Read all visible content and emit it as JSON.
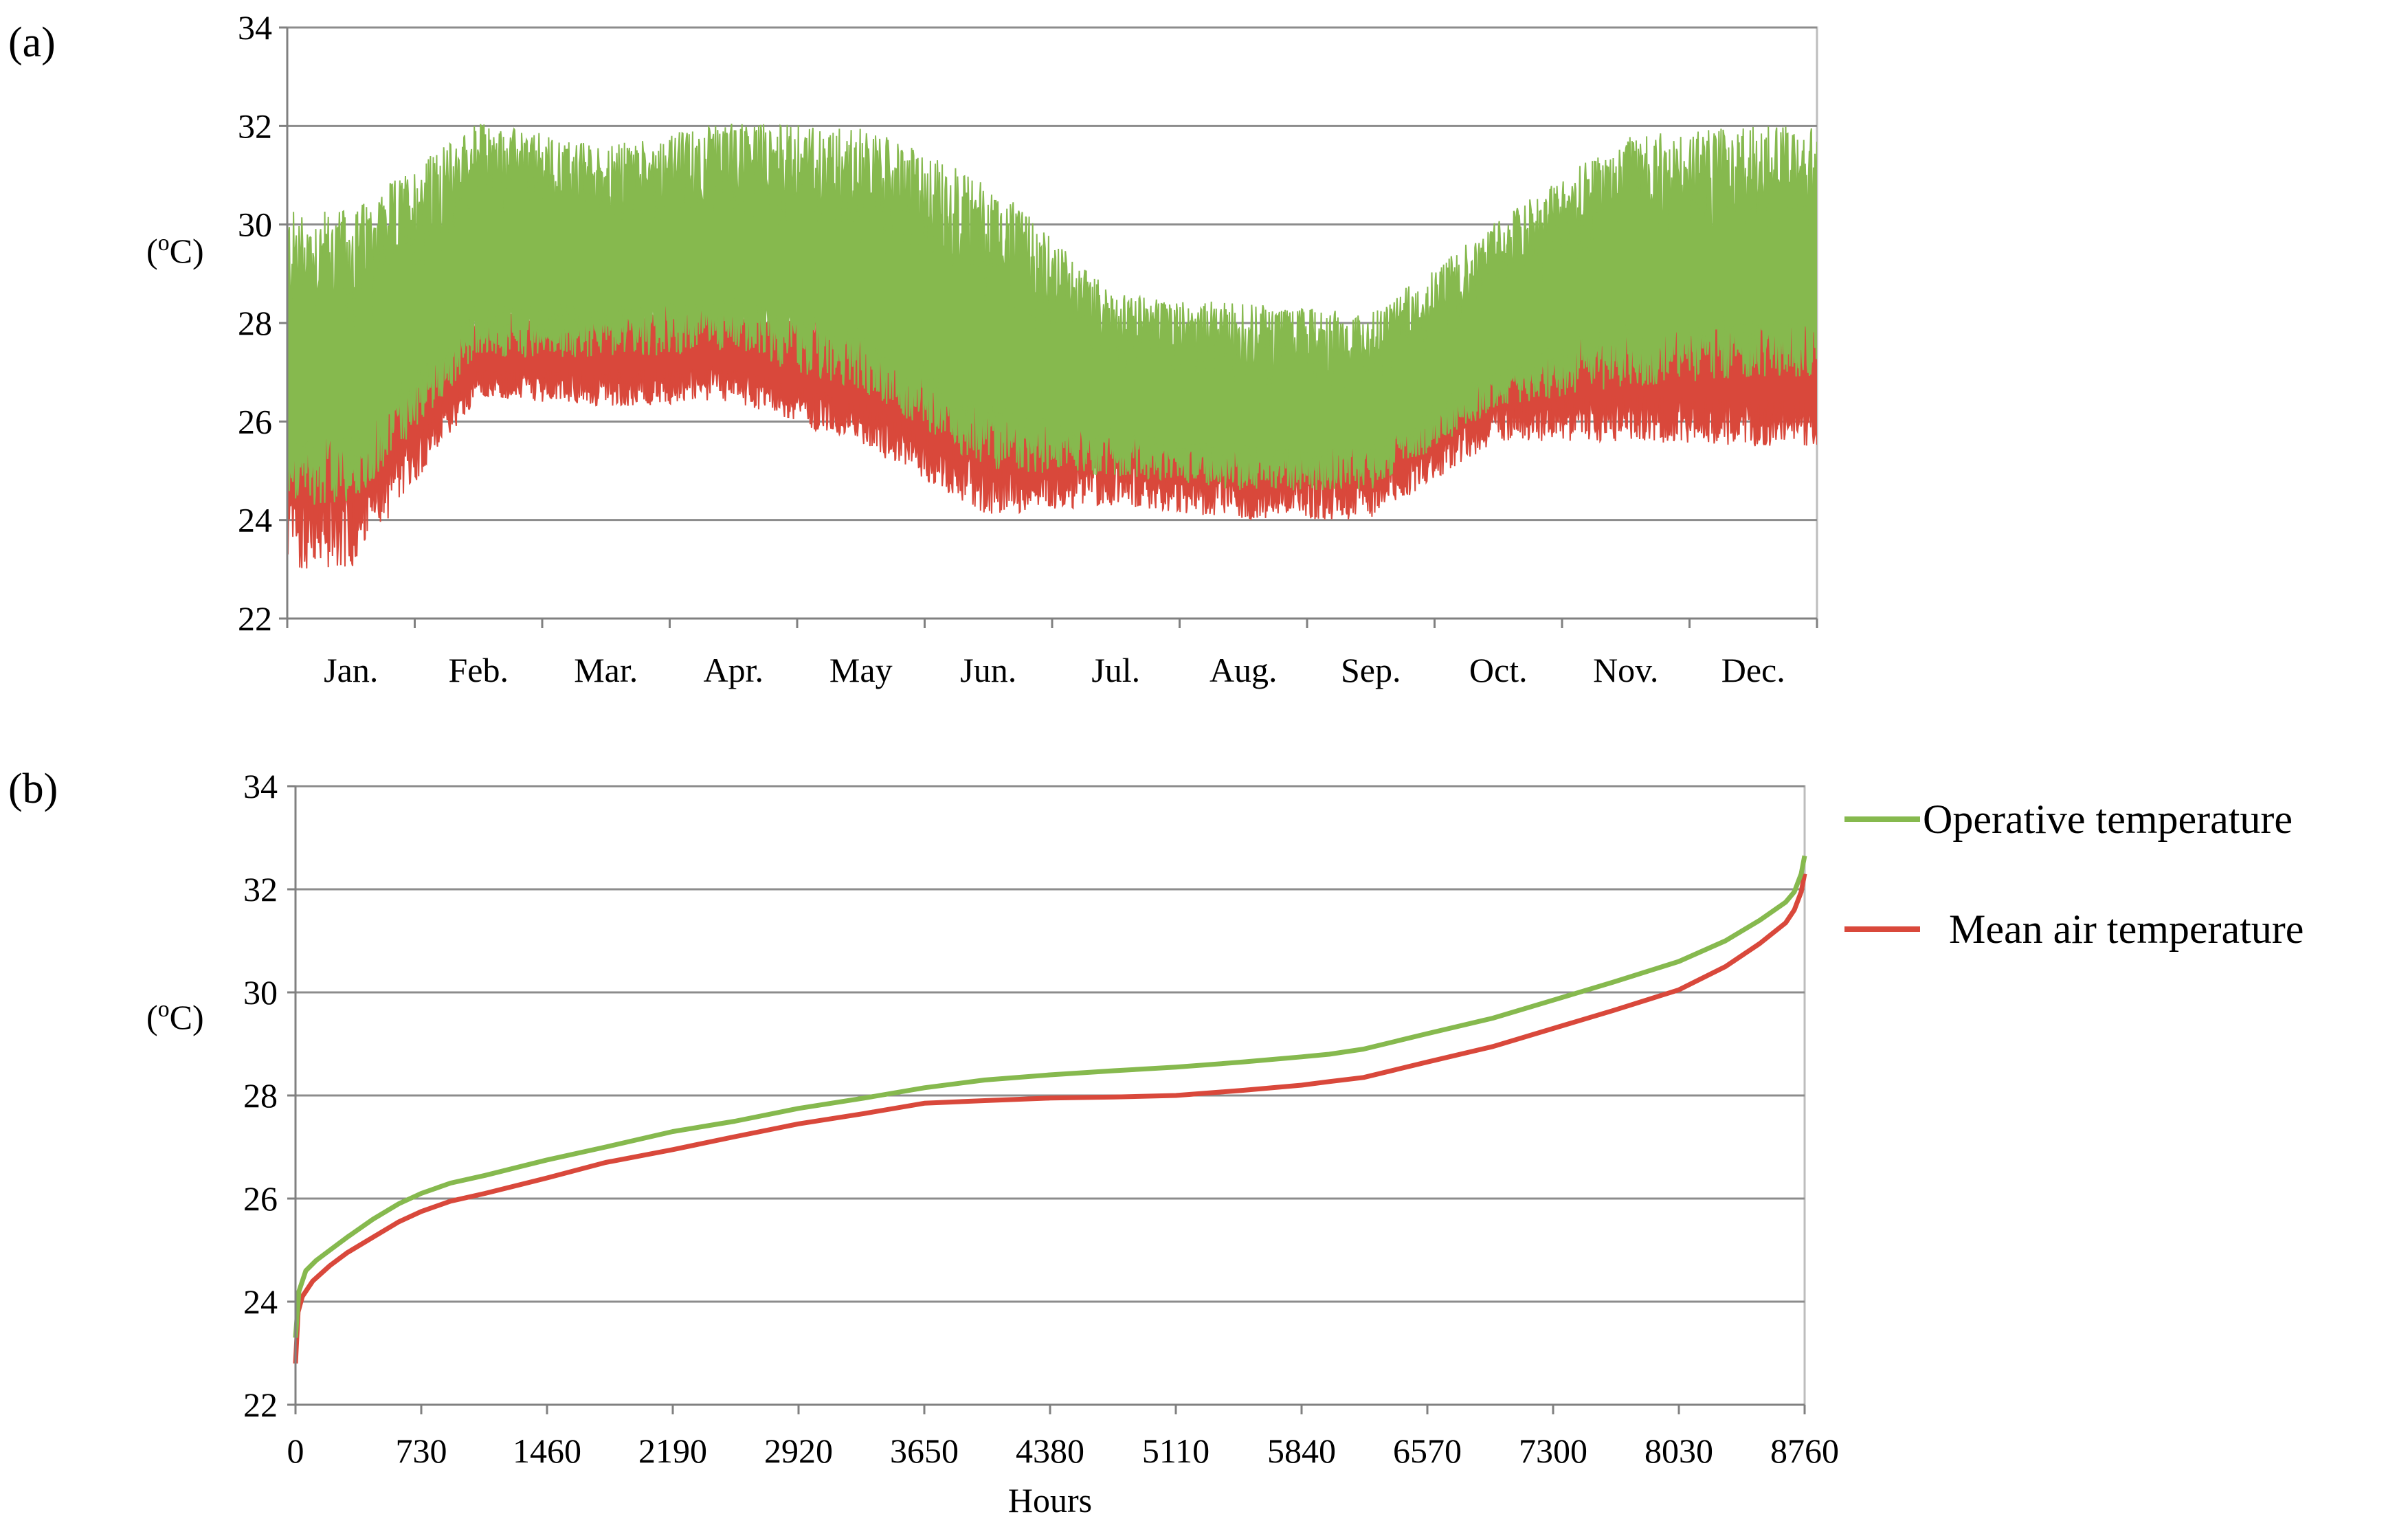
{
  "chart_data": [
    {
      "panel": "(a)",
      "type": "area",
      "xlabel": "",
      "ylabel": "(oC)",
      "ylim": [
        22,
        34
      ],
      "yticks": [
        22,
        24,
        26,
        28,
        30,
        32,
        34
      ],
      "grid": true,
      "categories": [
        "Jan.",
        "Feb.",
        "Mar.",
        "Apr.",
        "May",
        "Jun.",
        "Jul.",
        "Aug.",
        "Sep.",
        "Oct.",
        "Nov.",
        "Dec."
      ],
      "series": [
        {
          "name": "Operative temperature",
          "color": "#86b94e",
          "upper_envelope_monthly": [
            30.3,
            32.1,
            31.6,
            32.1,
            32.0,
            30.9,
            28.6,
            28.4,
            28.2,
            30.1,
            31.8,
            32.0
          ],
          "lower_envelope_monthly": [
            24.3,
            27.3,
            27.3,
            27.4,
            26.6,
            25.0,
            24.9,
            24.6,
            24.6,
            26.3,
            26.7,
            26.9
          ]
        },
        {
          "name": "Mean air temperature",
          "color": "#d9483b",
          "upper_envelope_monthly": [
            28.0,
            28.1,
            28.5,
            28.4,
            28.1,
            27.3,
            26.9,
            26.6,
            26.8,
            28.0,
            28.4,
            28.2
          ],
          "lower_envelope_monthly": [
            23.0,
            26.5,
            26.3,
            26.4,
            25.5,
            24.1,
            24.3,
            24.0,
            24.0,
            25.6,
            25.6,
            25.5
          ]
        }
      ]
    },
    {
      "panel": "(b)",
      "type": "line",
      "xlabel": "Hours",
      "ylabel": "(oC)",
      "xlim": [
        0,
        8760
      ],
      "ylim": [
        22,
        34
      ],
      "xticks": [
        0,
        730,
        1460,
        2190,
        2920,
        3650,
        4380,
        5110,
        5840,
        6570,
        7300,
        8030,
        8760
      ],
      "yticks": [
        22,
        24,
        26,
        28,
        30,
        32,
        34
      ],
      "grid": true,
      "legend_position": "right",
      "series": [
        {
          "name": "Operative temperature",
          "color": "#86b94e",
          "x": [
            0,
            20,
            60,
            120,
            200,
            300,
            450,
            600,
            730,
            900,
            1100,
            1460,
            1800,
            2190,
            2550,
            2920,
            3300,
            3650,
            4000,
            4380,
            4750,
            5110,
            5500,
            5840,
            6000,
            6200,
            6570,
            6950,
            7300,
            7650,
            8030,
            8300,
            8500,
            8650,
            8700,
            8740,
            8760
          ],
          "y": [
            23.3,
            24.2,
            24.6,
            24.8,
            25.0,
            25.25,
            25.6,
            25.9,
            26.1,
            26.3,
            26.45,
            26.75,
            27.0,
            27.3,
            27.5,
            27.75,
            27.95,
            28.15,
            28.3,
            28.4,
            28.48,
            28.55,
            28.65,
            28.75,
            28.8,
            28.9,
            29.2,
            29.5,
            29.85,
            30.2,
            30.6,
            31.0,
            31.4,
            31.75,
            31.95,
            32.3,
            32.65
          ]
        },
        {
          "name": "Mean air temperature",
          "color": "#d9483b",
          "x": [
            0,
            15,
            40,
            100,
            200,
            300,
            450,
            600,
            730,
            900,
            1100,
            1460,
            1800,
            2190,
            2550,
            2920,
            3300,
            3650,
            4000,
            4380,
            4750,
            5110,
            5500,
            5840,
            6000,
            6200,
            6570,
            6950,
            7300,
            7650,
            8030,
            8300,
            8500,
            8650,
            8700,
            8740,
            8760
          ],
          "y": [
            22.8,
            23.8,
            24.1,
            24.4,
            24.7,
            24.95,
            25.25,
            25.55,
            25.75,
            25.95,
            26.1,
            26.4,
            26.7,
            26.95,
            27.2,
            27.45,
            27.65,
            27.85,
            27.9,
            27.95,
            27.97,
            28.0,
            28.1,
            28.2,
            28.27,
            28.35,
            28.65,
            28.95,
            29.3,
            29.65,
            30.05,
            30.5,
            30.95,
            31.35,
            31.6,
            31.95,
            32.3
          ]
        }
      ]
    }
  ]
}
